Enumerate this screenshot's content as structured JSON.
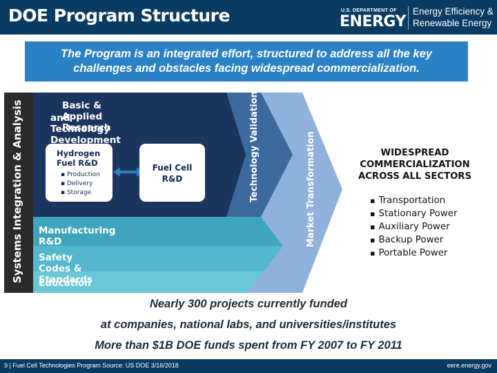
{
  "header": {
    "title": "DOE Program Structure",
    "logo_small": "U.S. DEPARTMENT OF",
    "logo_big": "ENERGY",
    "logo_ee_line1": "Energy Efficiency &",
    "logo_ee_line2": "Renewable Energy"
  },
  "callout": {
    "line1": "The Program is an integrated effort, structured to address all the key",
    "line2": "challenges and obstacles facing widespread commercialization."
  },
  "diagram": {
    "left_bar_label": "Systems Integration & Analysis",
    "top_block_line1": "Basic & Applied Research",
    "top_block_line2": "and Technology Development",
    "hydrogen_title_1": "Hydrogen",
    "hydrogen_title_2": "Fuel R&D",
    "hydrogen_items": [
      "Production",
      "Delivery",
      "Storage"
    ],
    "fuelcell_title_1": "Fuel Cell",
    "fuelcell_title_2": "R&D",
    "tech_validation": "Technology Validation",
    "market_transformation": "Market Transformation",
    "bands": [
      "Manufacturing R&D",
      "Safety Codes & Standards",
      "Education"
    ],
    "widespread_lines": [
      "WIDESPREAD",
      "COMMERCIALIZATION",
      "ACROSS ALL SECTORS"
    ],
    "sectors": [
      "Transportation",
      "Stationary Power",
      "Auxiliary Power",
      "Backup Power",
      "Portable Power"
    ],
    "colors": {
      "left_bar": "#2b2b2b",
      "dark_navy": "#1a355e",
      "mid_blue": "#3d6a9c",
      "light_blue": "#8fb1dc",
      "teal": "#3fa5bf",
      "teal_light": "#55b7cd",
      "teal_lighter": "#6bc6d8"
    }
  },
  "bottom": {
    "line1": "Nearly 300 projects currently funded",
    "line2": "at companies, national labs, and universities/institutes",
    "line3": "More than $1B DOE funds spent from FY 2007 to FY 2011"
  },
  "footer": {
    "left": "9 | Fuel Cell Technologies Program Source: US DOE 3/16/2018",
    "right": "eere.energy.gov"
  }
}
